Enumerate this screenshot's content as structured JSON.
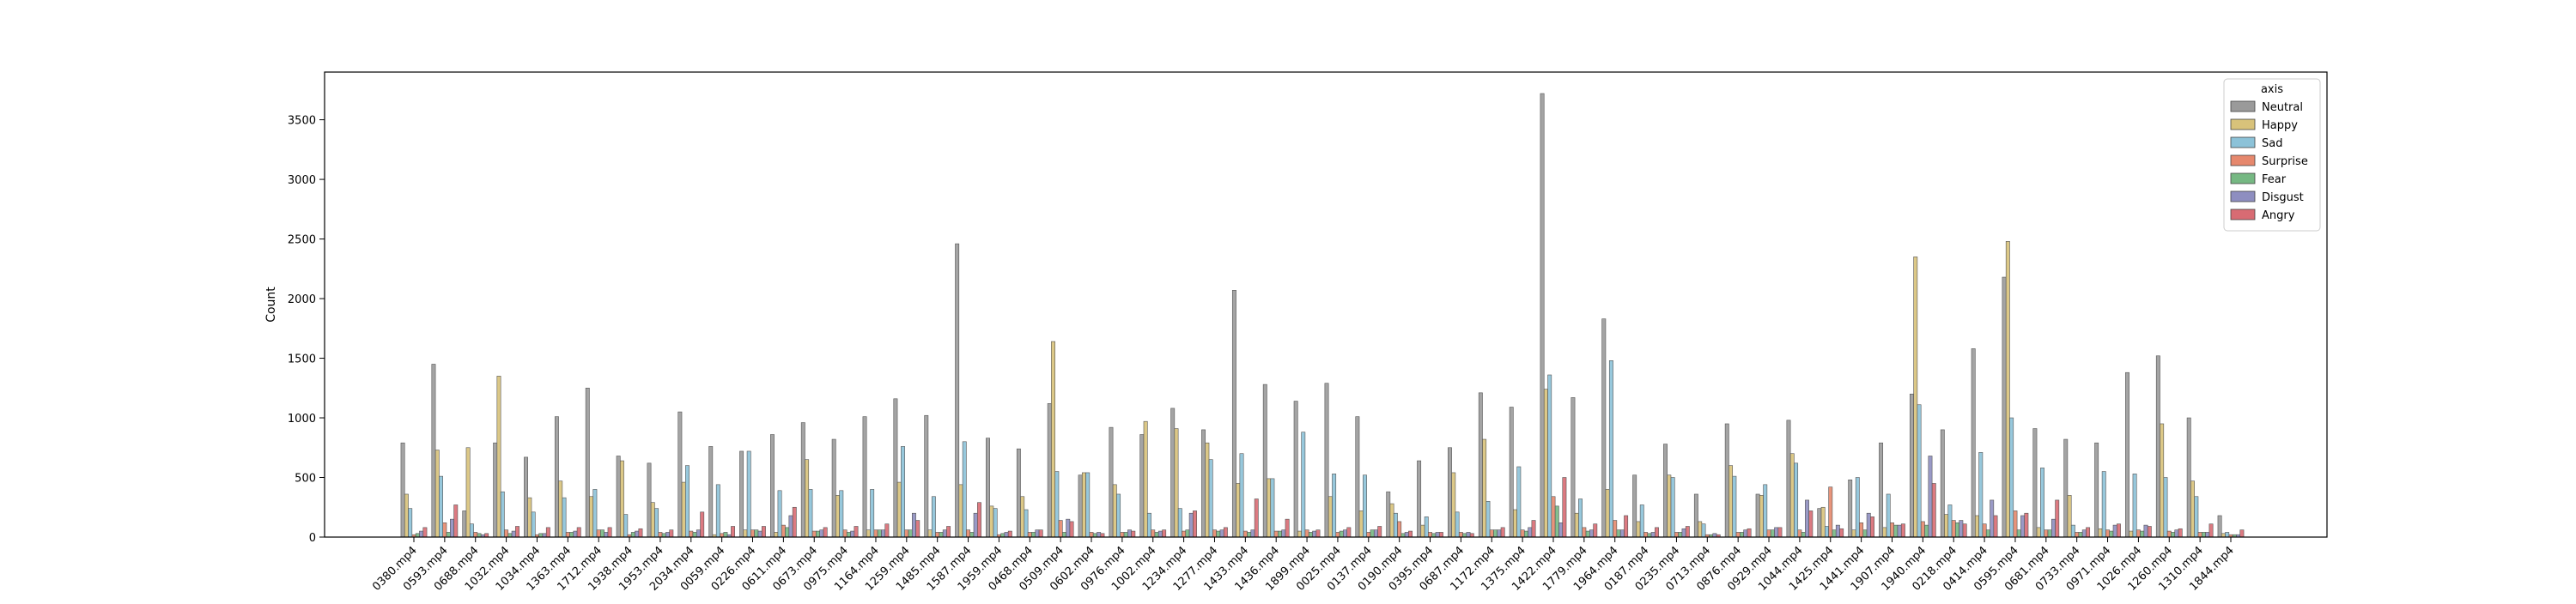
{
  "chart_data": {
    "type": "bar",
    "xlabel": "",
    "ylabel": "Count",
    "ylim": [
      0,
      3900
    ],
    "yticks": [
      0,
      500,
      1000,
      1500,
      2000,
      2500,
      3000,
      3500
    ],
    "grid": false,
    "legend_title": "axis",
    "legend_position": "top-right",
    "categories": [
      "0380.mp4",
      "0593.mp4",
      "0688.mp4",
      "1032.mp4",
      "1034.mp4",
      "1363.mp4",
      "1712.mp4",
      "1938.mp4",
      "1953.mp4",
      "2034.mp4",
      "0059.mp4",
      "0226.mp4",
      "0611.mp4",
      "0673.mp4",
      "0975.mp4",
      "1164.mp4",
      "1259.mp4",
      "1485.mp4",
      "1587.mp4",
      "1959.mp4",
      "0468.mp4",
      "0509.mp4",
      "0602.mp4",
      "0976.mp4",
      "1002.mp4",
      "1234.mp4",
      "1277.mp4",
      "1433.mp4",
      "1436.mp4",
      "1899.mp4",
      "0025.mp4",
      "0137.mp4",
      "0190.mp4",
      "0395.mp4",
      "0687.mp4",
      "1172.mp4",
      "1375.mp4",
      "1422.mp4",
      "1779.mp4",
      "1964.mp4",
      "0187.mp4",
      "0235.mp4",
      "0713.mp4",
      "0876.mp4",
      "0929.mp4",
      "1044.mp4",
      "1425.mp4",
      "1441.mp4",
      "1907.mp4",
      "1940.mp4",
      "0218.mp4",
      "0414.mp4",
      "0595.mp4",
      "0681.mp4",
      "0733.mp4",
      "0971.mp4",
      "1026.mp4",
      "1260.mp4",
      "1310.mp4",
      "1844.mp4"
    ],
    "series": [
      {
        "name": "Neutral",
        "color": "#9a9a9a",
        "values": [
          790,
          1450,
          220,
          790,
          670,
          1010,
          1250,
          680,
          620,
          1050,
          760,
          720,
          860,
          960,
          820,
          1010,
          1160,
          1020,
          2460,
          830,
          740,
          1120,
          520,
          920,
          860,
          1080,
          900,
          2070,
          1280,
          1140,
          1290,
          1010,
          380,
          640,
          750,
          1210,
          1090,
          3720,
          1170,
          1830,
          520,
          780,
          360,
          950,
          360,
          980,
          240,
          480,
          790,
          1200,
          900,
          1580,
          2180,
          910,
          820,
          790,
          1380,
          1520,
          1000,
          180
        ]
      },
      {
        "name": "Happy",
        "color": "#d8c27a",
        "values": [
          360,
          730,
          750,
          1350,
          330,
          470,
          340,
          640,
          290,
          460,
          20,
          60,
          40,
          650,
          350,
          60,
          460,
          60,
          440,
          260,
          340,
          1640,
          540,
          440,
          970,
          910,
          790,
          450,
          490,
          50,
          340,
          220,
          280,
          100,
          540,
          820,
          230,
          1240,
          200,
          400,
          130,
          520,
          130,
          600,
          350,
          700,
          250,
          60,
          80,
          2350,
          190,
          180,
          2480,
          80,
          350,
          70,
          50,
          950,
          470,
          30
        ]
      },
      {
        "name": "Sad",
        "color": "#8cc2d8",
        "values": [
          240,
          510,
          110,
          380,
          210,
          330,
          400,
          190,
          240,
          600,
          440,
          720,
          390,
          400,
          390,
          400,
          760,
          340,
          800,
          240,
          230,
          550,
          540,
          360,
          200,
          240,
          650,
          700,
          490,
          880,
          530,
          520,
          200,
          170,
          210,
          300,
          590,
          1360,
          320,
          1480,
          270,
          500,
          110,
          510,
          440,
          620,
          90,
          500,
          360,
          1110,
          270,
          710,
          1000,
          580,
          100,
          550,
          530,
          500,
          340,
          40
        ]
      },
      {
        "name": "Surprise",
        "color": "#e6886d",
        "values": [
          20,
          120,
          40,
          60,
          20,
          40,
          60,
          20,
          40,
          50,
          30,
          60,
          100,
          50,
          60,
          60,
          60,
          40,
          60,
          20,
          40,
          140,
          40,
          40,
          60,
          50,
          60,
          50,
          50,
          60,
          40,
          40,
          130,
          40,
          40,
          60,
          60,
          340,
          80,
          140,
          40,
          40,
          20,
          40,
          60,
          60,
          420,
          120,
          120,
          130,
          140,
          110,
          220,
          60,
          40,
          60,
          60,
          50,
          40,
          20
        ]
      },
      {
        "name": "Fear",
        "color": "#76b883",
        "values": [
          30,
          40,
          30,
          30,
          30,
          40,
          60,
          40,
          30,
          40,
          40,
          60,
          80,
          50,
          40,
          60,
          60,
          40,
          40,
          30,
          40,
          40,
          30,
          40,
          40,
          60,
          50,
          40,
          50,
          40,
          50,
          60,
          30,
          30,
          30,
          60,
          50,
          260,
          50,
          60,
          30,
          40,
          20,
          40,
          60,
          40,
          60,
          60,
          100,
          100,
          120,
          60,
          60,
          60,
          40,
          50,
          50,
          40,
          40,
          20
        ]
      },
      {
        "name": "Disgust",
        "color": "#8e8ec0",
        "values": [
          50,
          150,
          20,
          50,
          30,
          50,
          40,
          50,
          40,
          60,
          20,
          50,
          180,
          60,
          50,
          60,
          200,
          60,
          200,
          40,
          60,
          150,
          40,
          60,
          50,
          200,
          60,
          60,
          60,
          50,
          60,
          60,
          40,
          40,
          40,
          60,
          80,
          120,
          60,
          60,
          40,
          70,
          30,
          60,
          80,
          310,
          100,
          200,
          100,
          680,
          140,
          310,
          180,
          150,
          60,
          100,
          100,
          60,
          40,
          20
        ]
      },
      {
        "name": "Angry",
        "color": "#d86b73",
        "values": [
          80,
          270,
          30,
          90,
          80,
          80,
          80,
          70,
          60,
          210,
          90,
          90,
          250,
          80,
          90,
          110,
          140,
          90,
          290,
          50,
          60,
          130,
          30,
          50,
          60,
          220,
          80,
          320,
          150,
          60,
          80,
          90,
          50,
          40,
          30,
          80,
          140,
          500,
          110,
          180,
          80,
          90,
          20,
          70,
          80,
          220,
          70,
          170,
          110,
          450,
          110,
          180,
          200,
          310,
          80,
          110,
          90,
          70,
          110,
          60
        ]
      }
    ]
  }
}
